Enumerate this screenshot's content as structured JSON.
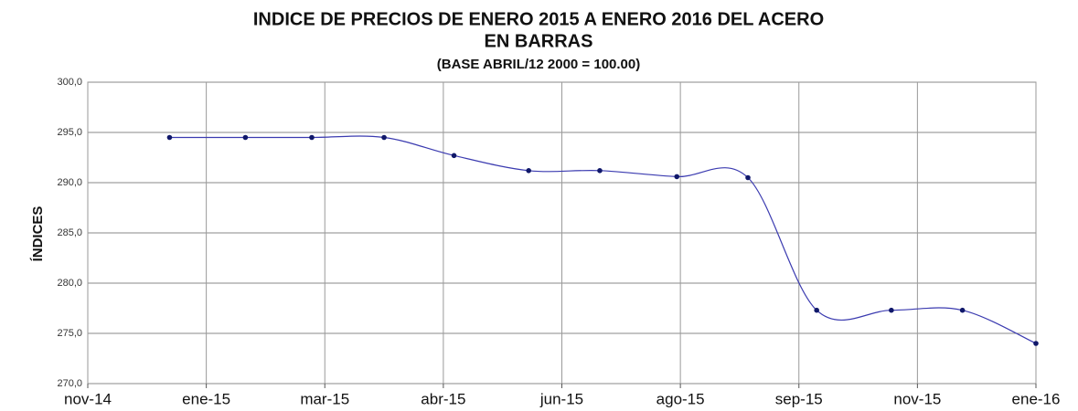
{
  "chart_data": {
    "type": "line",
    "title": [
      "INDICE  DE PRECIOS DE ENERO 2015 A ENERO 2016 DEL ACERO",
      "EN BARRAS"
    ],
    "subtitle": "(BASE ABRIL/12 2000 = 100.00)",
    "y_label": "ÍNDICES",
    "x": [
      0.69,
      1.33,
      1.89,
      2.5,
      3.09,
      3.72,
      4.32,
      4.97,
      5.57,
      6.15,
      6.78,
      7.38,
      8.0
    ],
    "series": [
      {
        "name": "Acero en barras",
        "color": "#3b3bb0",
        "marker_color": "#10186a",
        "values": [
          294.5,
          294.5,
          294.5,
          294.5,
          292.7,
          291.2,
          291.2,
          290.6,
          290.5,
          277.3,
          277.3,
          277.3,
          274.0
        ]
      }
    ],
    "xlim": [
      0,
      8
    ],
    "xticks": [
      {
        "value": 0,
        "label": "nov-14"
      },
      {
        "value": 1,
        "label": "ene-15"
      },
      {
        "value": 2,
        "label": "mar-15"
      },
      {
        "value": 3,
        "label": "abr-15"
      },
      {
        "value": 4,
        "label": "jun-15"
      },
      {
        "value": 5,
        "label": "ago-15"
      },
      {
        "value": 6,
        "label": "sep-15"
      },
      {
        "value": 7,
        "label": "nov-15"
      },
      {
        "value": 8,
        "label": "ene-16"
      }
    ],
    "ylim": [
      270,
      300
    ],
    "yticks": [
      {
        "value": 270,
        "label": "270,0"
      },
      {
        "value": 275,
        "label": "275,0"
      },
      {
        "value": 280,
        "label": "280,0"
      },
      {
        "value": 285,
        "label": "285,0"
      },
      {
        "value": 290,
        "label": "290,0"
      },
      {
        "value": 295,
        "label": "295,0"
      },
      {
        "value": 300,
        "label": "300,0"
      }
    ],
    "grid": true,
    "smooth": true
  }
}
